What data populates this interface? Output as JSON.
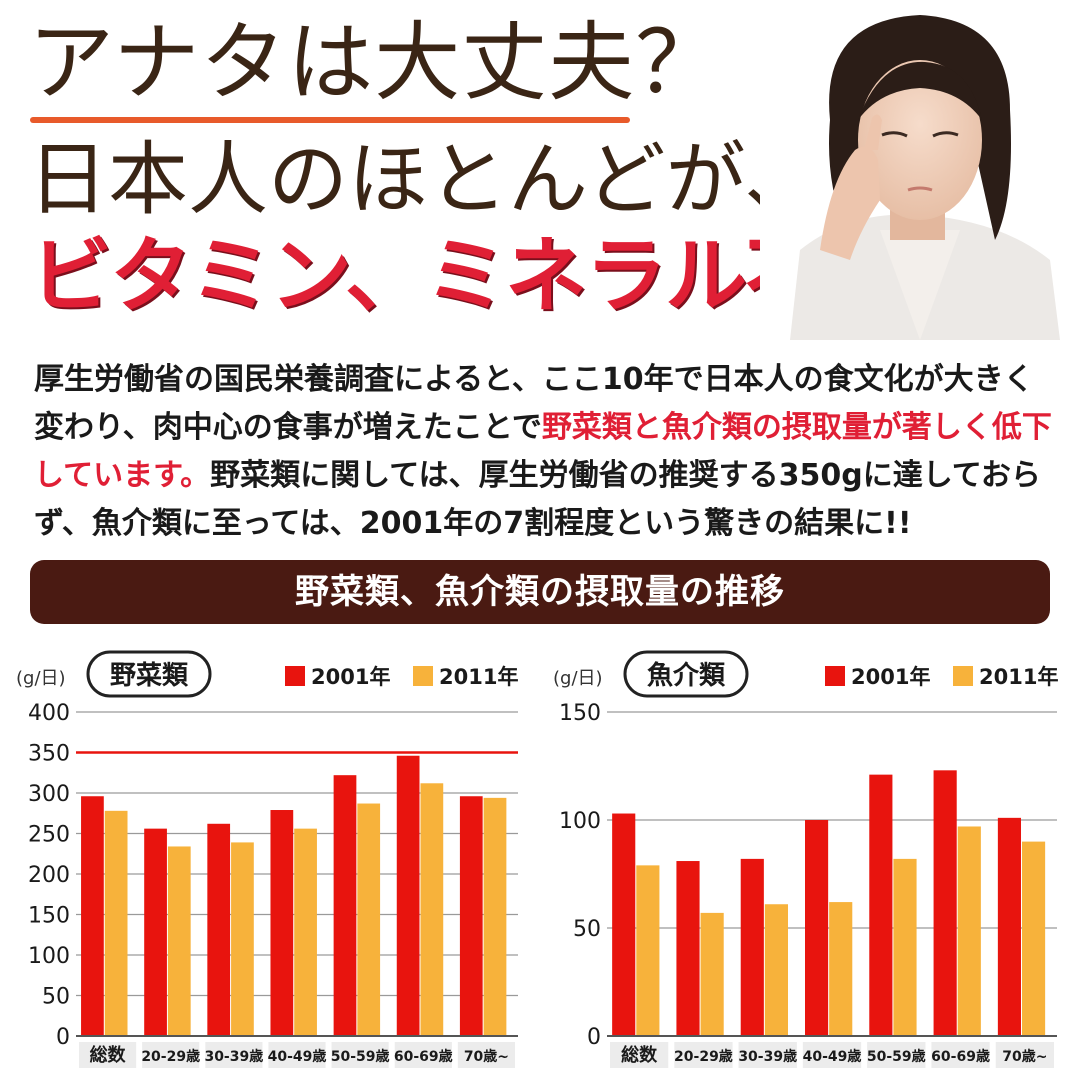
{
  "header": {
    "line1": "アナタは大丈夫？",
    "line2": "日本人のほとんどが、",
    "line3": "ビタミン、ミネラル不足!!"
  },
  "body": {
    "p1": "厚生労働省の国民栄養調査によると、ここ10年で日本人の食文化が大きく変わり、肉中心の食事が増えたことで",
    "highlight": "野菜類と魚介類の摂取量が著しく低下しています。",
    "p2": "野菜類に関しては、厚生労働省の推奨する350gに達しておらず、魚介類に至っては、2001年の7割程度という驚きの結果に!!"
  },
  "banner": {
    "title": "野菜類、魚介類の摂取量の推移"
  },
  "colors": {
    "y2001": "#e8140e",
    "y2011": "#f7b23b",
    "ref_line": "#e8140e",
    "banner_bg": "#4a1a12",
    "accent": "#e01f35"
  },
  "chart_data": [
    {
      "type": "bar",
      "title": "野菜類",
      "ylabel": "(g/日)",
      "categories": [
        "総数",
        "20-29歳",
        "30-39歳",
        "40-49歳",
        "50-59歳",
        "60-69歳",
        "70歳~"
      ],
      "series": [
        {
          "name": "2001年",
          "values": [
            296,
            256,
            262,
            279,
            322,
            346,
            296
          ]
        },
        {
          "name": "2011年",
          "values": [
            278,
            234,
            239,
            256,
            287,
            312,
            294
          ]
        }
      ],
      "ylim": [
        0,
        400
      ],
      "yticks": [
        0,
        50,
        100,
        150,
        200,
        250,
        300,
        350,
        400
      ],
      "reference_line": 350,
      "grid": true,
      "legend": "top-right"
    },
    {
      "type": "bar",
      "title": "魚介類",
      "ylabel": "(g/日)",
      "categories": [
        "総数",
        "20-29歳",
        "30-39歳",
        "40-49歳",
        "50-59歳",
        "60-69歳",
        "70歳~"
      ],
      "series": [
        {
          "name": "2001年",
          "values": [
            103,
            81,
            82,
            100,
            121,
            123,
            101
          ]
        },
        {
          "name": "2011年",
          "values": [
            79,
            57,
            61,
            62,
            82,
            97,
            90
          ]
        }
      ],
      "ylim": [
        0,
        150
      ],
      "yticks": [
        0,
        50,
        100,
        150
      ],
      "grid": true,
      "legend": "top-right"
    }
  ]
}
